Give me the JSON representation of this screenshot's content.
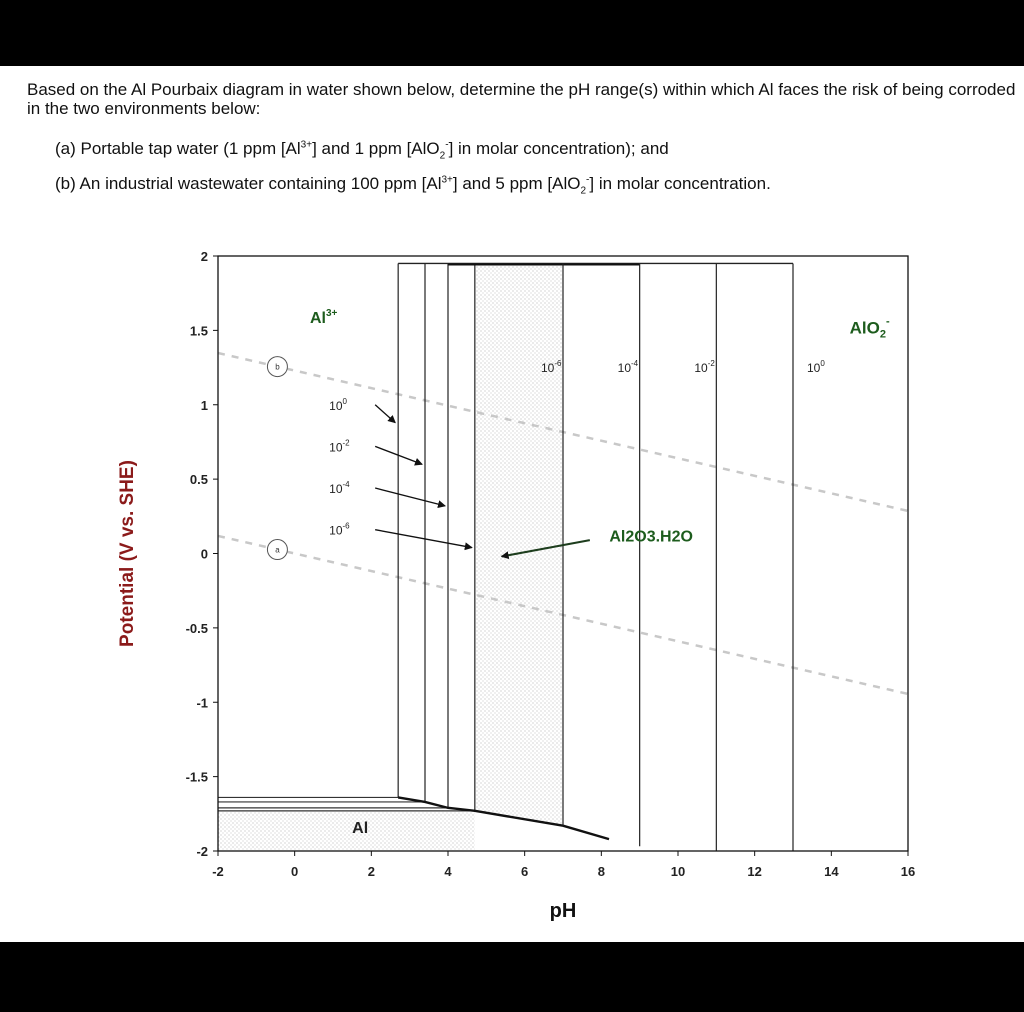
{
  "question": {
    "intro": "Based on the Al Pourbaix diagram in water shown below, determine the pH range(s) within which Al faces the risk of being corroded in the two environments below:",
    "part_a": {
      "prefix": "(a) Portable tap water (1 ppm [Al",
      "sup1": "3+",
      "mid": "] and 1 ppm [AlO",
      "sub1": "2",
      "sup2": "-",
      "suffix": "] in molar concentration); and"
    },
    "part_b": {
      "prefix": "(b) An industrial wastewater containing 100 ppm [Al",
      "sup1": "3+",
      "mid": "] and 5 ppm [AlO",
      "sub1": "2",
      "sup2": "-",
      "suffix": "] in molar concentration."
    }
  },
  "chart_data": {
    "type": "line",
    "xlabel": "pH",
    "ylabel": "Potential (V vs. SHE)",
    "xlim": [
      -2,
      16
    ],
    "ylim": [
      -2,
      2
    ],
    "xticks": [
      -2,
      0,
      2,
      4,
      6,
      8,
      10,
      12,
      14,
      16
    ],
    "yticks": [
      2,
      1.5,
      1,
      0.5,
      0,
      -0.5,
      -1,
      -1.5,
      -2
    ],
    "x_tick_labels": [
      "-2",
      "0",
      "2",
      "4",
      "6",
      "8",
      "10",
      "12",
      "14",
      "16"
    ],
    "y_tick_labels": [
      "2",
      "1.5",
      "1",
      "0.5",
      "0",
      "-0.5",
      "-1",
      "-1.5",
      "-2"
    ],
    "regions": [
      {
        "label_main": "Al",
        "label_sup": "3+",
        "x": 0.4,
        "y": 1.55
      },
      {
        "label_main": "AlO",
        "label_sub": "2",
        "label_sup": "-",
        "x": 15,
        "y": 1.48
      },
      {
        "label_main": "Al2O3.H2O",
        "x": 9.3,
        "y": 0.08
      },
      {
        "label_main": "Al",
        "x": 1.5,
        "y": -1.88
      }
    ],
    "al3_boundaries": [
      {
        "label": "10",
        "exp": "0",
        "pH": 2.7,
        "E_low": -1.64
      },
      {
        "label": "10",
        "exp": "-2",
        "pH": 3.4,
        "E_low": -1.67
      },
      {
        "label": "10",
        "exp": "-4",
        "pH": 4.0,
        "E_low": -1.71
      },
      {
        "label": "10",
        "exp": "-6",
        "pH": 4.7,
        "E_low": -1.73
      }
    ],
    "alo2_boundaries": [
      {
        "label": "10",
        "exp": "-6",
        "pH": 7.0
      },
      {
        "label": "10",
        "exp": "-4",
        "pH": 9.0
      },
      {
        "label": "10",
        "exp": "-2",
        "pH": 11.0
      },
      {
        "label": "10",
        "exp": "0",
        "pH": 13.0
      }
    ],
    "top_potential": 1.95,
    "al_passive_boundary": [
      [
        4.7,
        -1.73
      ],
      [
        7.0,
        -1.83
      ],
      [
        8.2,
        -1.92
      ]
    ],
    "water_lines": [
      {
        "name": "a",
        "intercept": 0.0,
        "slope": -0.059
      },
      {
        "name": "b",
        "intercept": 1.23,
        "slope": -0.059
      }
    ]
  }
}
